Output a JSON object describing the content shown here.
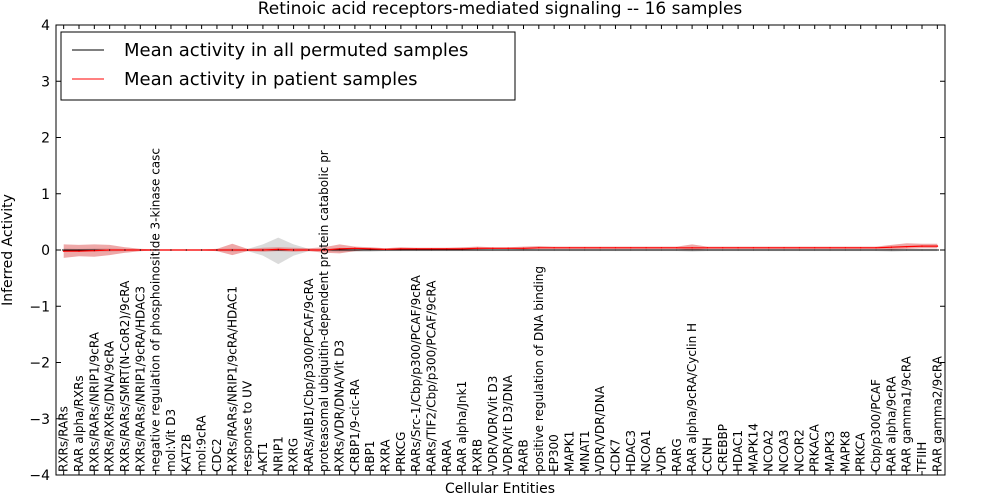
{
  "chart_data": {
    "type": "line",
    "title": "Retinoic acid receptors-mediated signaling -- 16 samples",
    "xlabel": "Cellular Entities",
    "ylabel": "Inferred Activity",
    "ylim": [
      -4,
      4
    ],
    "yticks": [
      "−4",
      "−3",
      "−2",
      "−1",
      "0",
      "1",
      "2",
      "3",
      "4"
    ],
    "ytick_values": [
      -4,
      -3,
      -2,
      -1,
      0,
      1,
      2,
      3,
      4
    ],
    "legend_position": "top-left",
    "categories": [
      "RXRs/RARs",
      "RAR alpha/RXRs",
      "RXRs/RARs/NRIP1/9cRA",
      "RXRs/RXRs/DNA/9cRA",
      "RXRs/RARs/SMRT(N-CoR2)/9cRA",
      "RXRs/RARs/NRIP1/9cRA/HDAC3",
      "negative regulation of phosphoinositide 3-kinase casc",
      "mol:Vit D3",
      "KAT2B",
      "mol:9cRA",
      "CDC2",
      "RXRs/RARs/NRIP1/9cRA/HDAC1",
      "response to UV",
      "AKT1",
      "NRIP1",
      "RXRG",
      "RARs/AIB1/Cbp/p300/PCAF/9cRA",
      "proteasomal ubiquitin-dependent protein catabolic pr",
      "RXRs/VDR/DNA/Vit D3",
      "CRBP1/9-cic-RA",
      "RBP1",
      "RXRA",
      "PRKCG",
      "RARs/Src-1/Cbp/p300/PCAF/9cRA",
      "RARs/TIF2/Cbp/p300/PCAF/9cRA",
      "RARA",
      "RAR alpha/Jnk1",
      "RXRB",
      "VDR/VDR/Vit D3",
      "VDR/Vit D3/DNA",
      "RARB",
      "positive regulation of DNA binding",
      "EP300",
      "MAPK1",
      "MNAT1",
      "VDR/VDR/DNA",
      "CDK7",
      "HDAC3",
      "NCOA1",
      "VDR",
      "RARG",
      "RAR alpha/9cRA/Cyclin H",
      "CCNH",
      "CREBBP",
      "HDAC1",
      "MAPK14",
      "NCOA2",
      "NCOA3",
      "NCOR2",
      "PRKACA",
      "MAPK3",
      "MAPK8",
      "PRKCA",
      "Cbp/p300/PCAF",
      "RAR alpha/9cRA",
      "RAR gamma1/9cRA",
      "TFIIH",
      "RAR gamma2/9cRA"
    ],
    "series": [
      {
        "name": "Mean activity in all permuted samples",
        "color": "#000000",
        "values": [
          0.0,
          0.0,
          0.0,
          0.0,
          0.0,
          0.0,
          0.0,
          0.0,
          0.0,
          0.0,
          0.0,
          0.0,
          0.0,
          0.0,
          0.0,
          0.0,
          0.0,
          0.0,
          0.0,
          0.0,
          0.0,
          0.0,
          0.0,
          0.0,
          0.0,
          0.0,
          0.0,
          0.0,
          0.0,
          0.0,
          0.0,
          0.0,
          0.0,
          0.0,
          0.0,
          0.0,
          0.0,
          0.0,
          0.0,
          0.0,
          0.0,
          0.0,
          0.0,
          0.0,
          0.0,
          0.0,
          0.0,
          0.0,
          0.0,
          0.0,
          0.0,
          0.0,
          0.0,
          0.0,
          0.0,
          0.0,
          0.0,
          0.0
        ],
        "band_lower": [
          -0.03,
          -0.02,
          -0.03,
          -0.03,
          -0.02,
          -0.02,
          -0.01,
          -0.01,
          -0.01,
          -0.01,
          -0.02,
          -0.03,
          -0.02,
          -0.1,
          -0.25,
          -0.1,
          -0.02,
          -0.02,
          -0.04,
          -0.03,
          -0.03,
          -0.02,
          -0.02,
          -0.02,
          -0.02,
          -0.02,
          -0.02,
          -0.02,
          -0.02,
          -0.02,
          -0.02,
          -0.02,
          -0.02,
          -0.02,
          -0.02,
          -0.02,
          -0.02,
          -0.02,
          -0.02,
          -0.02,
          -0.02,
          -0.03,
          -0.02,
          -0.02,
          -0.02,
          -0.02,
          -0.02,
          -0.02,
          -0.02,
          -0.02,
          -0.02,
          -0.02,
          -0.02,
          -0.02,
          -0.03,
          -0.02,
          -0.02,
          -0.02
        ],
        "band_upper": [
          0.03,
          0.02,
          0.03,
          0.03,
          0.02,
          0.02,
          0.01,
          0.01,
          0.01,
          0.01,
          0.02,
          0.03,
          0.02,
          0.1,
          0.22,
          0.1,
          0.02,
          0.02,
          0.04,
          0.03,
          0.03,
          0.02,
          0.02,
          0.02,
          0.02,
          0.02,
          0.02,
          0.02,
          0.02,
          0.02,
          0.02,
          0.02,
          0.02,
          0.02,
          0.02,
          0.02,
          0.02,
          0.02,
          0.02,
          0.02,
          0.02,
          0.03,
          0.02,
          0.02,
          0.02,
          0.02,
          0.02,
          0.02,
          0.02,
          0.02,
          0.02,
          0.02,
          0.02,
          0.02,
          0.03,
          0.02,
          0.02,
          0.02
        ]
      },
      {
        "name": "Mean activity in patient samples",
        "color": "#ff0000",
        "values": [
          -0.02,
          -0.02,
          -0.01,
          0.0,
          0.0,
          0.0,
          0.0,
          0.0,
          0.0,
          0.0,
          0.0,
          0.0,
          0.0,
          0.0,
          0.01,
          0.0,
          0.0,
          0.0,
          0.02,
          0.03,
          0.02,
          0.01,
          0.02,
          0.02,
          0.02,
          0.02,
          0.02,
          0.03,
          0.03,
          0.03,
          0.03,
          0.04,
          0.04,
          0.04,
          0.04,
          0.04,
          0.04,
          0.04,
          0.04,
          0.04,
          0.04,
          0.04,
          0.04,
          0.04,
          0.04,
          0.04,
          0.04,
          0.04,
          0.04,
          0.04,
          0.04,
          0.04,
          0.04,
          0.04,
          0.05,
          0.06,
          0.07,
          0.07
        ],
        "band_lower": [
          -0.14,
          -0.11,
          -0.12,
          -0.09,
          -0.05,
          -0.02,
          -0.01,
          -0.01,
          -0.01,
          -0.01,
          -0.02,
          -0.09,
          -0.02,
          -0.03,
          -0.02,
          -0.03,
          -0.02,
          -0.05,
          -0.06,
          -0.02,
          0.0,
          0.0,
          0.01,
          0.01,
          0.01,
          0.01,
          0.0,
          0.01,
          0.02,
          0.02,
          0.01,
          0.02,
          0.02,
          0.02,
          0.02,
          0.02,
          0.02,
          0.02,
          0.02,
          0.02,
          0.02,
          0.0,
          0.02,
          0.02,
          0.02,
          0.02,
          0.02,
          0.02,
          0.02,
          0.02,
          0.02,
          0.02,
          0.02,
          0.02,
          0.01,
          0.02,
          0.03,
          0.03
        ],
        "band_upper": [
          0.1,
          0.09,
          0.1,
          0.09,
          0.05,
          0.02,
          0.01,
          0.01,
          0.01,
          0.01,
          0.02,
          0.11,
          0.02,
          0.04,
          0.05,
          0.04,
          0.03,
          0.05,
          0.1,
          0.06,
          0.05,
          0.03,
          0.05,
          0.04,
          0.04,
          0.04,
          0.05,
          0.06,
          0.05,
          0.05,
          0.06,
          0.07,
          0.06,
          0.06,
          0.06,
          0.06,
          0.06,
          0.06,
          0.06,
          0.06,
          0.06,
          0.1,
          0.06,
          0.06,
          0.06,
          0.06,
          0.06,
          0.06,
          0.06,
          0.06,
          0.06,
          0.06,
          0.06,
          0.06,
          0.09,
          0.12,
          0.11,
          0.11
        ]
      }
    ],
    "zero_line": {
      "style": "dotted",
      "color": "#000000"
    }
  }
}
